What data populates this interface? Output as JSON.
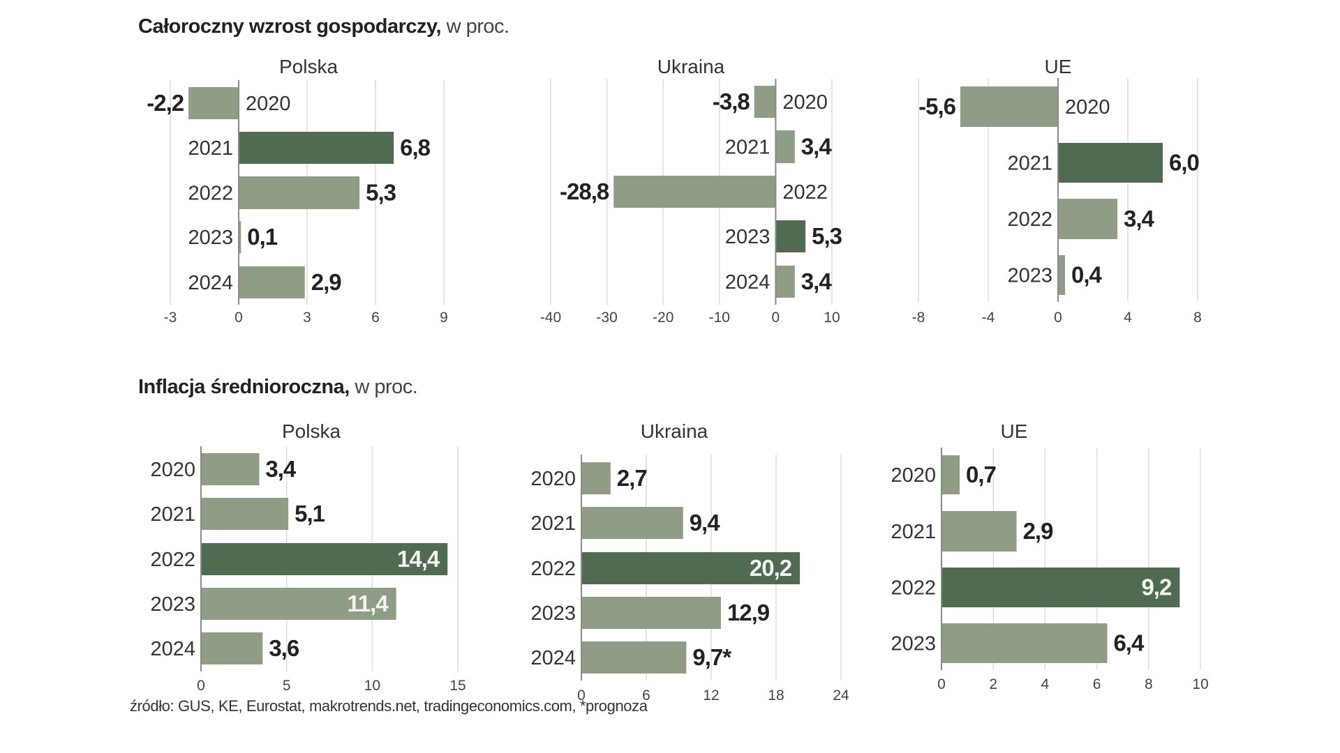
{
  "headings": {
    "growth": {
      "bold": "Całoroczny wzrost gospodarczy,",
      "light": " w proc."
    },
    "inflation": {
      "bold": "Inflacja średnioroczna,",
      "light": " w proc."
    }
  },
  "footer": "źródło: GUS, KE, Eurostat, makrotrends.net, tradingeconomics.com, *prognoza",
  "colors": {
    "highlight": "#4f6b51",
    "normal": "#8f9d87"
  },
  "chart_data": [
    {
      "id": "growth-polska",
      "type": "bar",
      "orientation": "horizontal",
      "group": "Całoroczny wzrost gospodarczy, w proc.",
      "title": "Polska",
      "categories": [
        "2020",
        "2021",
        "2022",
        "2023",
        "2024"
      ],
      "values": [
        -2.2,
        6.8,
        5.3,
        0.1,
        2.9
      ],
      "labels": [
        "-2,2",
        "6,8",
        "5,3",
        "0,1",
        "2,9"
      ],
      "highlight": [
        false,
        true,
        false,
        false,
        false
      ],
      "xlim": [
        -3,
        9
      ],
      "xticks": [
        -3,
        0,
        3,
        6,
        9
      ],
      "xtick_labels": [
        "-3",
        "0",
        "3",
        "6",
        "9"
      ],
      "grid": true
    },
    {
      "id": "growth-ukraina",
      "type": "bar",
      "orientation": "horizontal",
      "group": "Całoroczny wzrost gospodarczy, w proc.",
      "title": "Ukraina",
      "categories": [
        "2020",
        "2021",
        "2022",
        "2023",
        "2024"
      ],
      "values": [
        -3.8,
        3.4,
        -28.8,
        5.3,
        3.4
      ],
      "labels": [
        "-3,8",
        "3,4",
        "-28,8",
        "5,3",
        "3,4"
      ],
      "highlight": [
        false,
        false,
        false,
        true,
        false
      ],
      "xlim": [
        -40,
        10
      ],
      "xticks": [
        -40,
        -30,
        -20,
        -10,
        0,
        10
      ],
      "xtick_labels": [
        "-40",
        "-30",
        "-20",
        "-10",
        "0",
        "10"
      ],
      "grid": true
    },
    {
      "id": "growth-ue",
      "type": "bar",
      "orientation": "horizontal",
      "group": "Całoroczny wzrost gospodarczy, w proc.",
      "title": "UE",
      "categories": [
        "2020",
        "2021",
        "2022",
        "2023"
      ],
      "values": [
        -5.6,
        6.0,
        3.4,
        0.4
      ],
      "labels": [
        "-5,6",
        "6,0",
        "3,4",
        "0,4"
      ],
      "highlight": [
        false,
        true,
        false,
        false
      ],
      "xlim": [
        -8,
        8
      ],
      "xticks": [
        -8,
        -4,
        0,
        4,
        8
      ],
      "xtick_labels": [
        "-8",
        "-4",
        "0",
        "4",
        "8"
      ],
      "grid": true
    },
    {
      "id": "inflation-polska",
      "type": "bar",
      "orientation": "horizontal",
      "group": "Inflacja średnioroczna, w proc.",
      "title": "Polska",
      "categories": [
        "2020",
        "2021",
        "2022",
        "2023",
        "2024"
      ],
      "values": [
        3.4,
        5.1,
        14.4,
        11.4,
        3.6
      ],
      "labels": [
        "3,4",
        "5,1",
        "14,4",
        "11,4",
        "3,6"
      ],
      "highlight": [
        false,
        false,
        true,
        false,
        false
      ],
      "label_inside": [
        false,
        false,
        true,
        true,
        false
      ],
      "xlim": [
        0,
        15
      ],
      "xticks": [
        0,
        5,
        10,
        15
      ],
      "xtick_labels": [
        "0",
        "5",
        "10",
        "15"
      ],
      "grid": true
    },
    {
      "id": "inflation-ukraina",
      "type": "bar",
      "orientation": "horizontal",
      "group": "Inflacja średnioroczna, w proc.",
      "title": "Ukraina",
      "categories": [
        "2020",
        "2021",
        "2022",
        "2023",
        "2024"
      ],
      "values": [
        2.7,
        9.4,
        20.2,
        12.9,
        9.7
      ],
      "labels": [
        "2,7",
        "9,4",
        "20,2",
        "12,9",
        "9,7*"
      ],
      "highlight": [
        false,
        false,
        true,
        false,
        false
      ],
      "label_inside": [
        false,
        false,
        true,
        false,
        false
      ],
      "xlim": [
        0,
        24
      ],
      "xticks": [
        0,
        6,
        12,
        18,
        24
      ],
      "xtick_labels": [
        "0",
        "6",
        "12",
        "18",
        "24"
      ],
      "grid": true,
      "annotations": [
        "9,7* = prognoza"
      ]
    },
    {
      "id": "inflation-ue",
      "type": "bar",
      "orientation": "horizontal",
      "group": "Inflacja średnioroczna, w proc.",
      "title": "UE",
      "categories": [
        "2020",
        "2021",
        "2022",
        "2023"
      ],
      "values": [
        0.7,
        2.9,
        9.2,
        6.4
      ],
      "labels": [
        "0,7",
        "2,9",
        "9,2",
        "6,4"
      ],
      "highlight": [
        false,
        false,
        true,
        false
      ],
      "label_inside": [
        false,
        false,
        true,
        false
      ],
      "xlim": [
        0,
        10
      ],
      "xticks": [
        0,
        2,
        4,
        6,
        8,
        10
      ],
      "xtick_labels": [
        "0",
        "2",
        "4",
        "6",
        "8",
        "10"
      ],
      "grid": true
    }
  ]
}
